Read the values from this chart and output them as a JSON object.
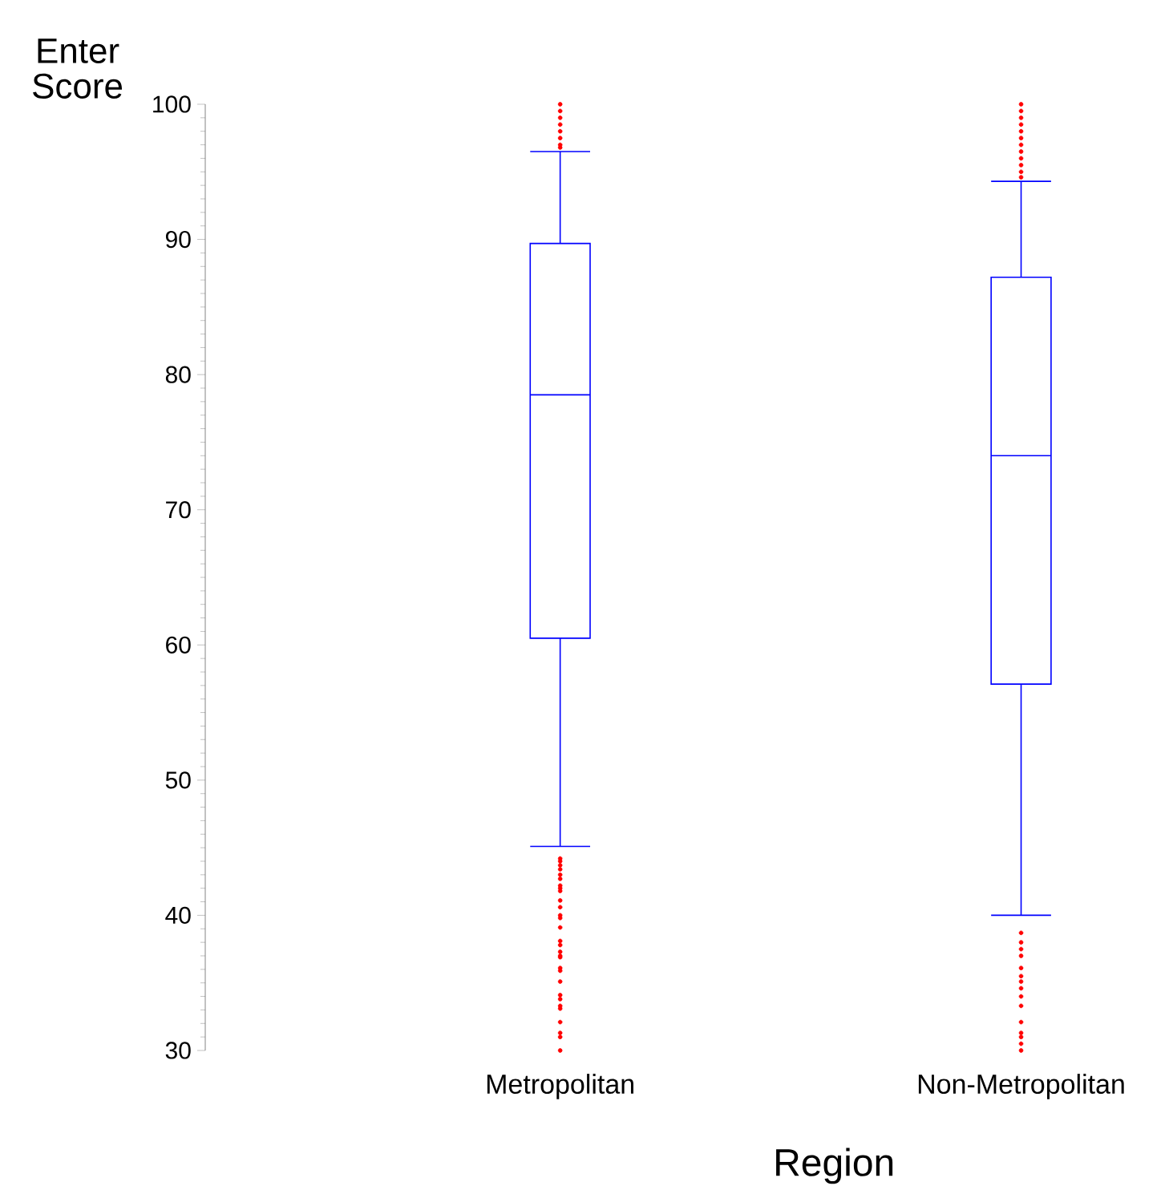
{
  "chart_data": {
    "type": "box",
    "ylabel": "Enter Score",
    "xlabel": "Region",
    "categories": [
      "Metropolitan",
      "Non-Metropolitan"
    ],
    "ylim": [
      30,
      100
    ],
    "yticks": [
      30,
      40,
      50,
      60,
      70,
      80,
      90,
      100
    ],
    "series": [
      {
        "color": "#0000ff",
        "boxes": [
          {
            "low": 45.1,
            "q1": 60.5,
            "median": 78.5,
            "q3": 89.7,
            "high": 96.5,
            "outliers": [
              44.2,
              44.0,
              43.7,
              43.4,
              43.0,
              42.7,
              42.2,
              42.0,
              41.8,
              41.1,
              40.6,
              40.0,
              39.8,
              39.1,
              38.1,
              37.8,
              37.3,
              37.0,
              36.9,
              36.1,
              35.9,
              35.1,
              34.1,
              33.8,
              33.3,
              33.1,
              32.1,
              31.3,
              31.0,
              30.0,
              96.8,
              97.0,
              97.5,
              98.0,
              98.5,
              99.0,
              99.5,
              100.0
            ]
          },
          {
            "low": 40.0,
            "q1": 57.1,
            "median": 74.0,
            "q3": 87.2,
            "high": 94.3,
            "outliers": [
              38.7,
              38.0,
              37.5,
              37.0,
              36.1,
              35.5,
              35.1,
              34.6,
              34.0,
              33.3,
              32.1,
              31.3,
              31.0,
              30.5,
              30.0,
              94.6,
              95.0,
              95.5,
              96.0,
              96.5,
              97.0,
              97.5,
              98.0,
              98.5,
              99.0,
              99.5,
              100.0
            ]
          }
        ]
      }
    ]
  }
}
